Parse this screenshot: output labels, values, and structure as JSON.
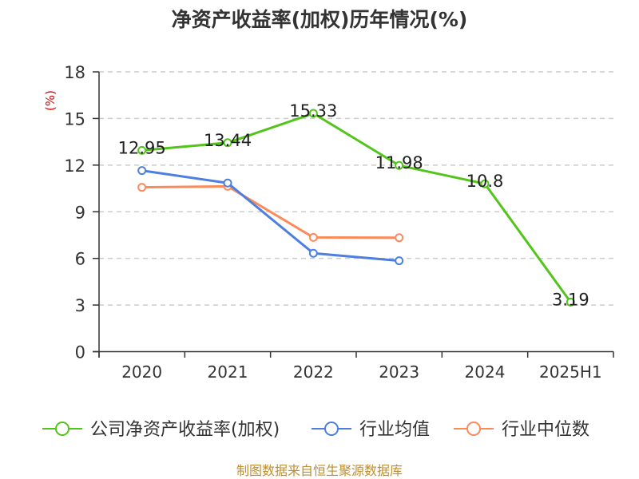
{
  "chart_data": {
    "type": "line",
    "title": "净资产收益率(加权)历年情况(%)",
    "ylabel": "(%)",
    "ylabel_color": "#e00000",
    "xlabel": "",
    "categories": [
      "2020",
      "2021",
      "2022",
      "2023",
      "2024",
      "2025H1"
    ],
    "ylim": [
      0,
      18
    ],
    "yticks": [
      0,
      3,
      6,
      9,
      12,
      15,
      18
    ],
    "grid": true,
    "legend_position": "bottom",
    "series": [
      {
        "name": "公司净资产收益率(加权)",
        "color": "#52c41a",
        "values": [
          12.95,
          13.44,
          15.33,
          11.98,
          10.8,
          3.19
        ],
        "labels": [
          "12.95",
          "13.44",
          "15.33",
          "11.98",
          "10.8",
          "3.19"
        ]
      },
      {
        "name": "行业均值",
        "color": "#4d7fe0",
        "values": [
          11.65,
          10.85,
          6.33,
          5.85,
          null,
          null
        ]
      },
      {
        "name": "行业中位数",
        "color": "#fc8a5a",
        "values": [
          10.57,
          10.64,
          7.35,
          7.33,
          null,
          null
        ]
      }
    ]
  },
  "footer": {
    "source": "制图数据来自恒生聚源数据库",
    "color": "#bf8f2f"
  }
}
